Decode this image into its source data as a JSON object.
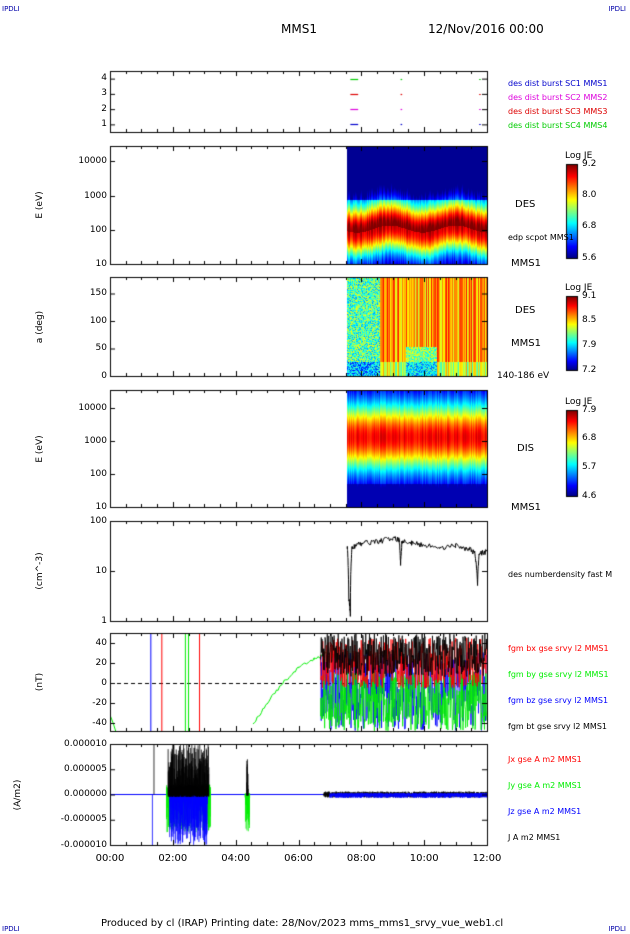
{
  "header": {
    "corner_tl": "IPDLI",
    "corner_tr": "IPDLI",
    "corner_bl": "IPDLI",
    "corner_br": "IPDLI",
    "spacecraft": "MMS1",
    "date": "12/Nov/2016 00:00"
  },
  "footer": {
    "text": "Produced by cl (IRAP)   Printing date: 28/Nov/2023   mms_mms1_srvy_vue_web1.cl"
  },
  "time_axis": {
    "ticks": [
      "00:00",
      "02:00",
      "04:00",
      "06:00",
      "08:00",
      "10:00",
      "12:00"
    ],
    "range_hours": [
      0,
      12
    ]
  },
  "colors": {
    "mms1": "#0000cc",
    "mms2": "#dd00dd",
    "mms3": "#dd0000",
    "mms4": "#00cc00",
    "bx": "#ff0000",
    "by": "#00ee00",
    "bz": "#0000ff",
    "bt": "#000000"
  },
  "chart_data": [
    {
      "type": "scatter",
      "panel": "burst-availability",
      "ylim": [
        0.5,
        4.5
      ],
      "y_ticks": [
        "4",
        "3",
        "2",
        "1"
      ],
      "legend": [
        {
          "label": "des dist burst SC1 MMS1",
          "color": "#0000cc"
        },
        {
          "label": "des dist burst SC2 MMS2",
          "color": "#dd00dd"
        },
        {
          "label": "des dist burst SC3 MMS3",
          "color": "#dd0000"
        },
        {
          "label": "des dist burst SC4 MMS4",
          "color": "#00cc00"
        }
      ],
      "series": [
        {
          "sc": 4,
          "intervals": [
            [
              7.65,
              7.9
            ],
            [
              9.25,
              9.3
            ],
            [
              11.75,
              11.8
            ]
          ]
        },
        {
          "sc": 3,
          "intervals": [
            [
              7.65,
              7.9
            ],
            [
              9.25,
              9.3
            ],
            [
              11.75,
              11.8
            ]
          ]
        },
        {
          "sc": 2,
          "intervals": [
            [
              7.65,
              7.9
            ],
            [
              9.25,
              9.3
            ],
            [
              11.75,
              11.8
            ]
          ]
        },
        {
          "sc": 1,
          "intervals": [
            [
              7.65,
              7.9
            ],
            [
              9.25,
              9.3
            ],
            [
              11.75,
              11.8
            ]
          ]
        }
      ]
    },
    {
      "type": "heatmap",
      "panel": "des-energy-spectrogram",
      "ylabel": "E (eV)",
      "y_ticks": [
        "10000",
        "1000",
        "100",
        "10"
      ],
      "ylim_log": [
        10,
        30000
      ],
      "data_start_hour": 7.55,
      "label": "DES",
      "sublabel": "edp scpot MMS1",
      "spacecraft_label": "MMS1",
      "colorbar": {
        "title": "Log JE",
        "ticks": [
          "9.2",
          "8.0",
          "6.8",
          "5.6"
        ],
        "range": [
          5.6,
          9.2
        ]
      }
    },
    {
      "type": "heatmap",
      "panel": "des-pitch-angle",
      "ylabel": "a (deg)",
      "y_ticks": [
        "150",
        "100",
        "50",
        "0"
      ],
      "ylim": [
        0,
        180
      ],
      "data_start_hour": 7.55,
      "label": "DES",
      "spacecraft_label": "MMS1",
      "energy_label": "140-186 eV",
      "colorbar": {
        "title": "Log JE",
        "ticks": [
          "9.1",
          "8.5",
          "7.9",
          "7.2"
        ],
        "range": [
          7.2,
          9.1
        ]
      }
    },
    {
      "type": "heatmap",
      "panel": "dis-energy-spectrogram",
      "ylabel": "E (eV)",
      "y_ticks": [
        "10000",
        "1000",
        "100",
        "10"
      ],
      "ylim_log": [
        10,
        30000
      ],
      "data_start_hour": 7.55,
      "label": "DIS",
      "spacecraft_label": "MMS1",
      "colorbar": {
        "title": "Log JE",
        "ticks": [
          "7.9",
          "6.8",
          "5.7",
          "4.6"
        ],
        "range": [
          4.6,
          7.9
        ]
      }
    },
    {
      "type": "line",
      "panel": "density",
      "ylabel": "(cm^-3)",
      "y_ticks": [
        "100",
        "10",
        "1"
      ],
      "ylim_log": [
        1,
        100
      ],
      "series": [
        {
          "name": "des numberdensity fast M",
          "x": [
            7.55,
            7.6,
            7.65,
            7.7,
            7.8,
            8.0,
            8.3,
            8.6,
            9.0,
            9.2,
            9.25,
            9.3,
            9.6,
            10.0,
            10.5,
            11.0,
            11.4,
            11.6,
            11.7,
            11.75,
            12.0
          ],
          "y": [
            30,
            3,
            1.3,
            28,
            32,
            35,
            38,
            40,
            45,
            42,
            14,
            40,
            36,
            33,
            30,
            32,
            28,
            24,
            5,
            22,
            25
          ]
        }
      ]
    },
    {
      "type": "line",
      "panel": "magnetic-field",
      "ylabel": "(nT)",
      "y_ticks": [
        "40",
        "20",
        "0",
        "-20",
        "-40"
      ],
      "ylim": [
        -48,
        50
      ],
      "series": [
        {
          "name": "fgm bx gse srvy l2 MMS1",
          "color": "#ff0000"
        },
        {
          "name": "fgm by gse srvy l2 MMS1",
          "color": "#00ee00"
        },
        {
          "name": "fgm bz gse srvy l2 MMS1",
          "color": "#0000ff"
        },
        {
          "name": "fgm bt gse srvy l2 MMS1",
          "color": "#000000"
        }
      ],
      "by_ramp": {
        "x": [
          4.55,
          5.0,
          5.5,
          6.0,
          6.5,
          6.9
        ],
        "y": [
          -42,
          -20,
          0,
          15,
          24,
          30
        ]
      },
      "vertical_spikes": [
        {
          "x": 1.3,
          "color": "#0000ff"
        },
        {
          "x": 1.65,
          "color": "#ff0000"
        },
        {
          "x": 2.4,
          "color": "#00ee00"
        },
        {
          "x": 2.5,
          "color": "#00ee00"
        },
        {
          "x": 2.85,
          "color": "#ff0000"
        }
      ]
    },
    {
      "type": "line",
      "panel": "current-density",
      "ylabel": "(A/m2)",
      "y_ticks": [
        "0.000010",
        "0.000005",
        "0.000000",
        "-0.000005",
        "-0.000010"
      ],
      "ylim": [
        -1e-05,
        1e-05
      ],
      "series": [
        {
          "name": "Jx gse A m2 MMS1",
          "color": "#ff0000"
        },
        {
          "name": "Jy gse A m2 MMS1",
          "color": "#00ee00"
        },
        {
          "name": "Jz gse A m2 MMS1",
          "color": "#0000ff"
        },
        {
          "name": "J A m2 MMS1",
          "color": "#000000"
        }
      ]
    }
  ]
}
